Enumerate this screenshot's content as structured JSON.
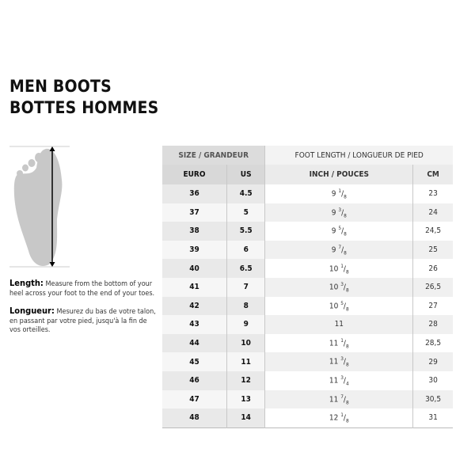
{
  "title": {
    "line1": "MEN BOOTS",
    "line2": "BOTTES HOMMES"
  },
  "description": {
    "length_label": "Length:",
    "length_text": "Measure from the bottom of your heel across your foot to the end of your toes.",
    "longueur_label": "Longueur:",
    "longueur_text": "Mesurez du bas de votre talon, en passant par votre pied, jusqu'à la fin de vos orteilles."
  },
  "table": {
    "group_headers": [
      "SIZE / GRANDEUR",
      "FOOT LENGTH / LONGUEUR DE PIED"
    ],
    "headers": [
      "EURO",
      "US",
      "INCH / POUCES",
      "CM"
    ],
    "rows": [
      {
        "euro": "36",
        "us": "4.5",
        "inch": {
          "whole": "9",
          "num": "1",
          "den": "8"
        },
        "cm": "23"
      },
      {
        "euro": "37",
        "us": "5",
        "inch": {
          "whole": "9",
          "num": "3",
          "den": "8"
        },
        "cm": "24"
      },
      {
        "euro": "38",
        "us": "5.5",
        "inch": {
          "whole": "9",
          "num": "5",
          "den": "8"
        },
        "cm": "24,5"
      },
      {
        "euro": "39",
        "us": "6",
        "inch": {
          "whole": "9",
          "num": "7",
          "den": "8"
        },
        "cm": "25"
      },
      {
        "euro": "40",
        "us": "6.5",
        "inch": {
          "whole": "10",
          "num": "1",
          "den": "8"
        },
        "cm": "26"
      },
      {
        "euro": "41",
        "us": "7",
        "inch": {
          "whole": "10",
          "num": "3",
          "den": "8"
        },
        "cm": "26,5"
      },
      {
        "euro": "42",
        "us": "8",
        "inch": {
          "whole": "10",
          "num": "5",
          "den": "8"
        },
        "cm": "27"
      },
      {
        "euro": "43",
        "us": "9",
        "inch": {
          "whole": "11",
          "num": "",
          "den": ""
        },
        "cm": "28"
      },
      {
        "euro": "44",
        "us": "10",
        "inch": {
          "whole": "11",
          "num": "1",
          "den": "8"
        },
        "cm": "28,5"
      },
      {
        "euro": "45",
        "us": "11",
        "inch": {
          "whole": "11",
          "num": "3",
          "den": "8"
        },
        "cm": "29"
      },
      {
        "euro": "46",
        "us": "12",
        "inch": {
          "whole": "11",
          "num": "3",
          "den": "4"
        },
        "cm": "30"
      },
      {
        "euro": "47",
        "us": "13",
        "inch": {
          "whole": "11",
          "num": "7",
          "den": "8"
        },
        "cm": "30,5"
      },
      {
        "euro": "48",
        "us": "14",
        "inch": {
          "whole": "12",
          "num": "1",
          "den": "8"
        },
        "cm": "31"
      }
    ]
  }
}
